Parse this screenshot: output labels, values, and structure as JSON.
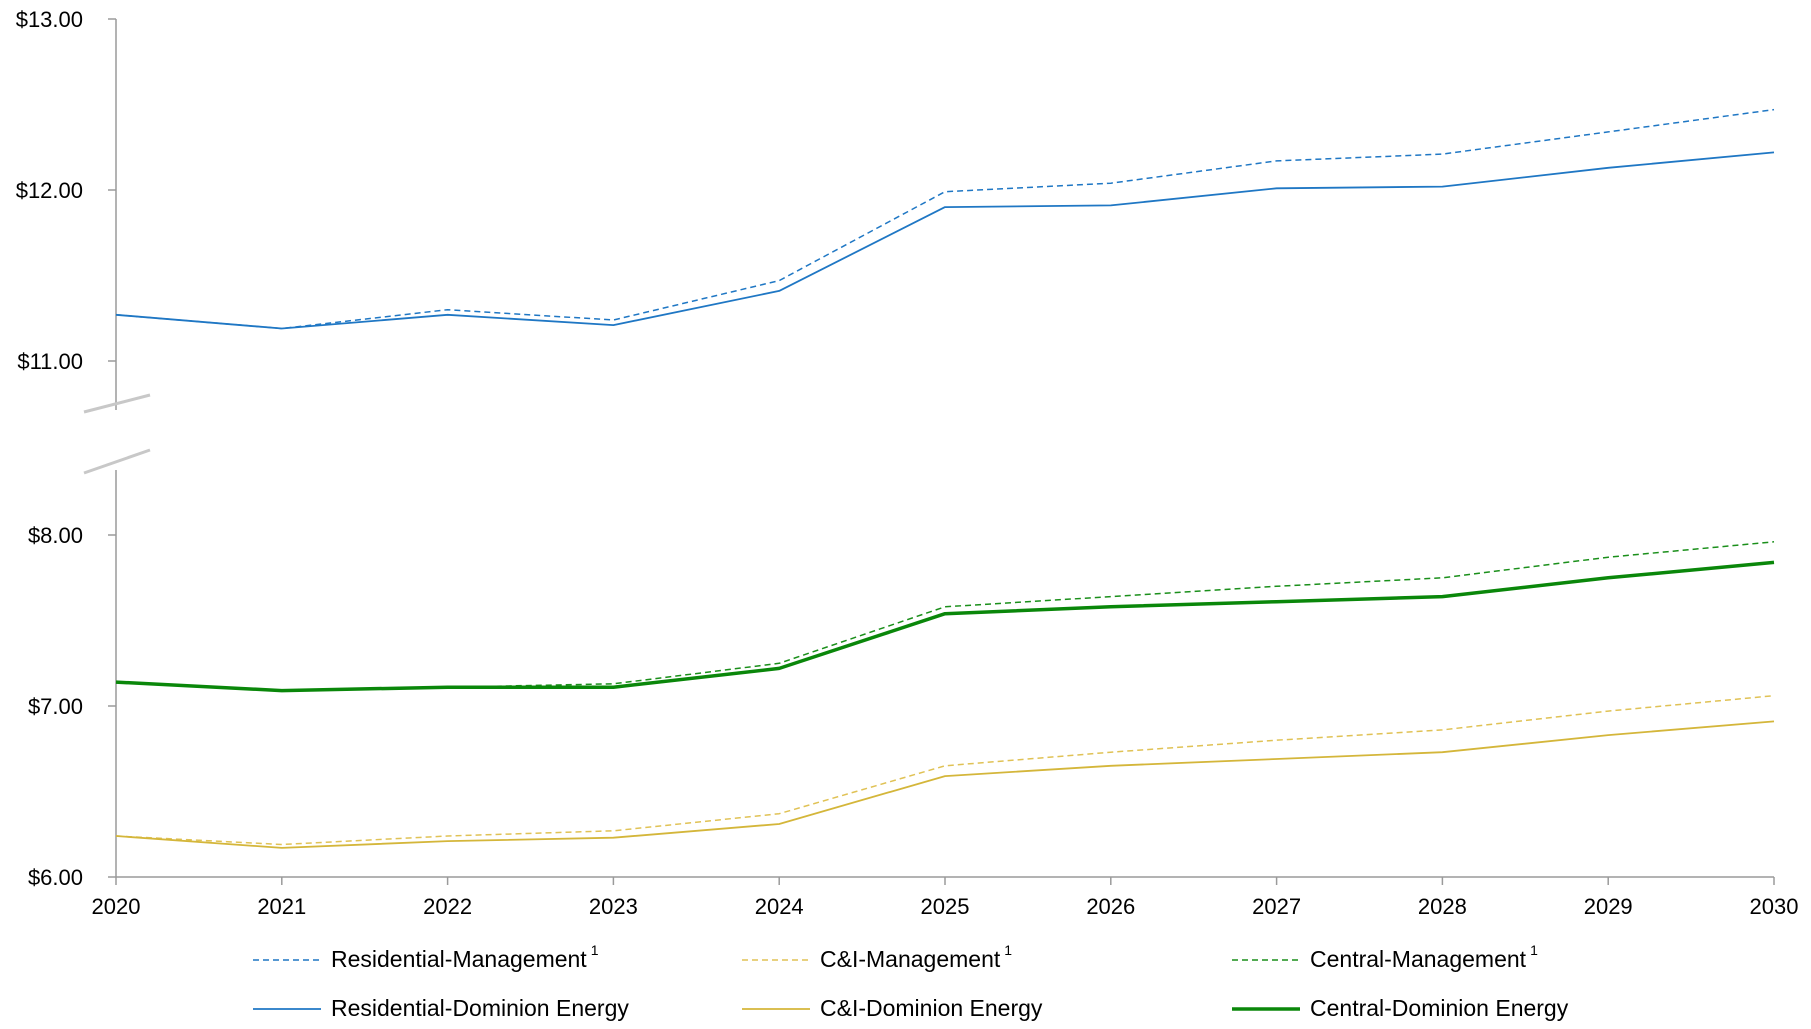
{
  "chart_data": {
    "type": "line",
    "title": "",
    "xlabel": "",
    "ylabel": "",
    "x": [
      "2020",
      "2021",
      "2022",
      "2023",
      "2024",
      "2025",
      "2026",
      "2027",
      "2028",
      "2029",
      "2030"
    ],
    "y_axis": {
      "broken": true,
      "lower_range": [
        6,
        8
      ],
      "upper_range": [
        11,
        13
      ],
      "ticks": [
        6,
        7,
        8,
        11,
        12,
        13
      ],
      "tick_labels": [
        "$6.00",
        "$7.00",
        "$8.00",
        "$11.00",
        "$12.00",
        "$13.00"
      ]
    },
    "grid": false,
    "legend_position": "bottom",
    "legend_footnote_marker": "1",
    "series": [
      {
        "name": "Residential-Management",
        "footnote": true,
        "color": "#1f77c4",
        "style": "dashed",
        "width": 1.5,
        "values": [
          11.27,
          11.19,
          11.3,
          11.24,
          11.47,
          11.99,
          12.04,
          12.17,
          12.21,
          12.34,
          12.47
        ]
      },
      {
        "name": "C&I-Management",
        "footnote": true,
        "color": "#e0c255",
        "style": "dashed",
        "width": 1.5,
        "values": [
          6.24,
          6.19,
          6.24,
          6.27,
          6.37,
          6.65,
          6.73,
          6.8,
          6.86,
          6.97,
          7.06
        ]
      },
      {
        "name": "Central-Management",
        "footnote": true,
        "color": "#1a8f1a",
        "style": "dashed",
        "width": 1.5,
        "values": [
          7.14,
          7.09,
          7.11,
          7.13,
          7.25,
          7.58,
          7.64,
          7.7,
          7.75,
          7.87,
          7.96
        ]
      },
      {
        "name": "Residential-Dominion Energy",
        "footnote": false,
        "color": "#1f77c4",
        "style": "solid",
        "width": 1.8,
        "values": [
          11.27,
          11.19,
          11.27,
          11.21,
          11.41,
          11.9,
          11.91,
          12.01,
          12.02,
          12.13,
          12.22
        ]
      },
      {
        "name": "C&I-Dominion Energy",
        "footnote": false,
        "color": "#d4b63a",
        "style": "solid",
        "width": 1.8,
        "values": [
          6.24,
          6.17,
          6.21,
          6.23,
          6.31,
          6.59,
          6.65,
          6.69,
          6.73,
          6.83,
          6.91
        ]
      },
      {
        "name": "Central-Dominion Energy",
        "footnote": false,
        "color": "#0a870a",
        "style": "solid",
        "width": 3.5,
        "values": [
          7.14,
          7.09,
          7.11,
          7.11,
          7.22,
          7.54,
          7.58,
          7.61,
          7.64,
          7.75,
          7.84
        ]
      }
    ]
  }
}
